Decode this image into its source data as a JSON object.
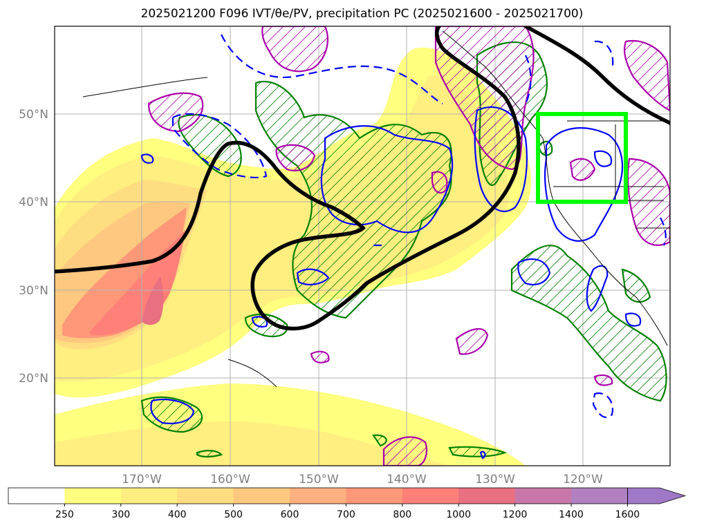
{
  "title": "2025021200 F096 IVT/θe/PV, precipitation PC (2025021600 - 2025021700)",
  "axes": {
    "lat_labels": [
      "50°N",
      "40°N",
      "30°N",
      "20°N"
    ],
    "lon_labels": [
      "170°W",
      "160°W",
      "150°W",
      "140°W",
      "130°W",
      "120°W"
    ]
  },
  "colorbar": {
    "levels": [
      "250",
      "300",
      "400",
      "500",
      "600",
      "700",
      "800",
      "1000",
      "1200",
      "1400",
      "1600"
    ],
    "colors": [
      "#ffffff",
      "#ffff80",
      "#ffee80",
      "#ffdd80",
      "#ffc880",
      "#ffb080",
      "#ff9878",
      "#ff8078",
      "#e87080",
      "#c878a8",
      "#b080c0",
      "#a078c8"
    ],
    "extend": "max"
  },
  "colors": {
    "jet_contour": "#000000",
    "theta_contour": "#0000ff",
    "pv_contour": "#aa00aa",
    "precip_contour": "#008000",
    "target_box": "#00ff00",
    "grid": "#b0b0b0"
  }
}
